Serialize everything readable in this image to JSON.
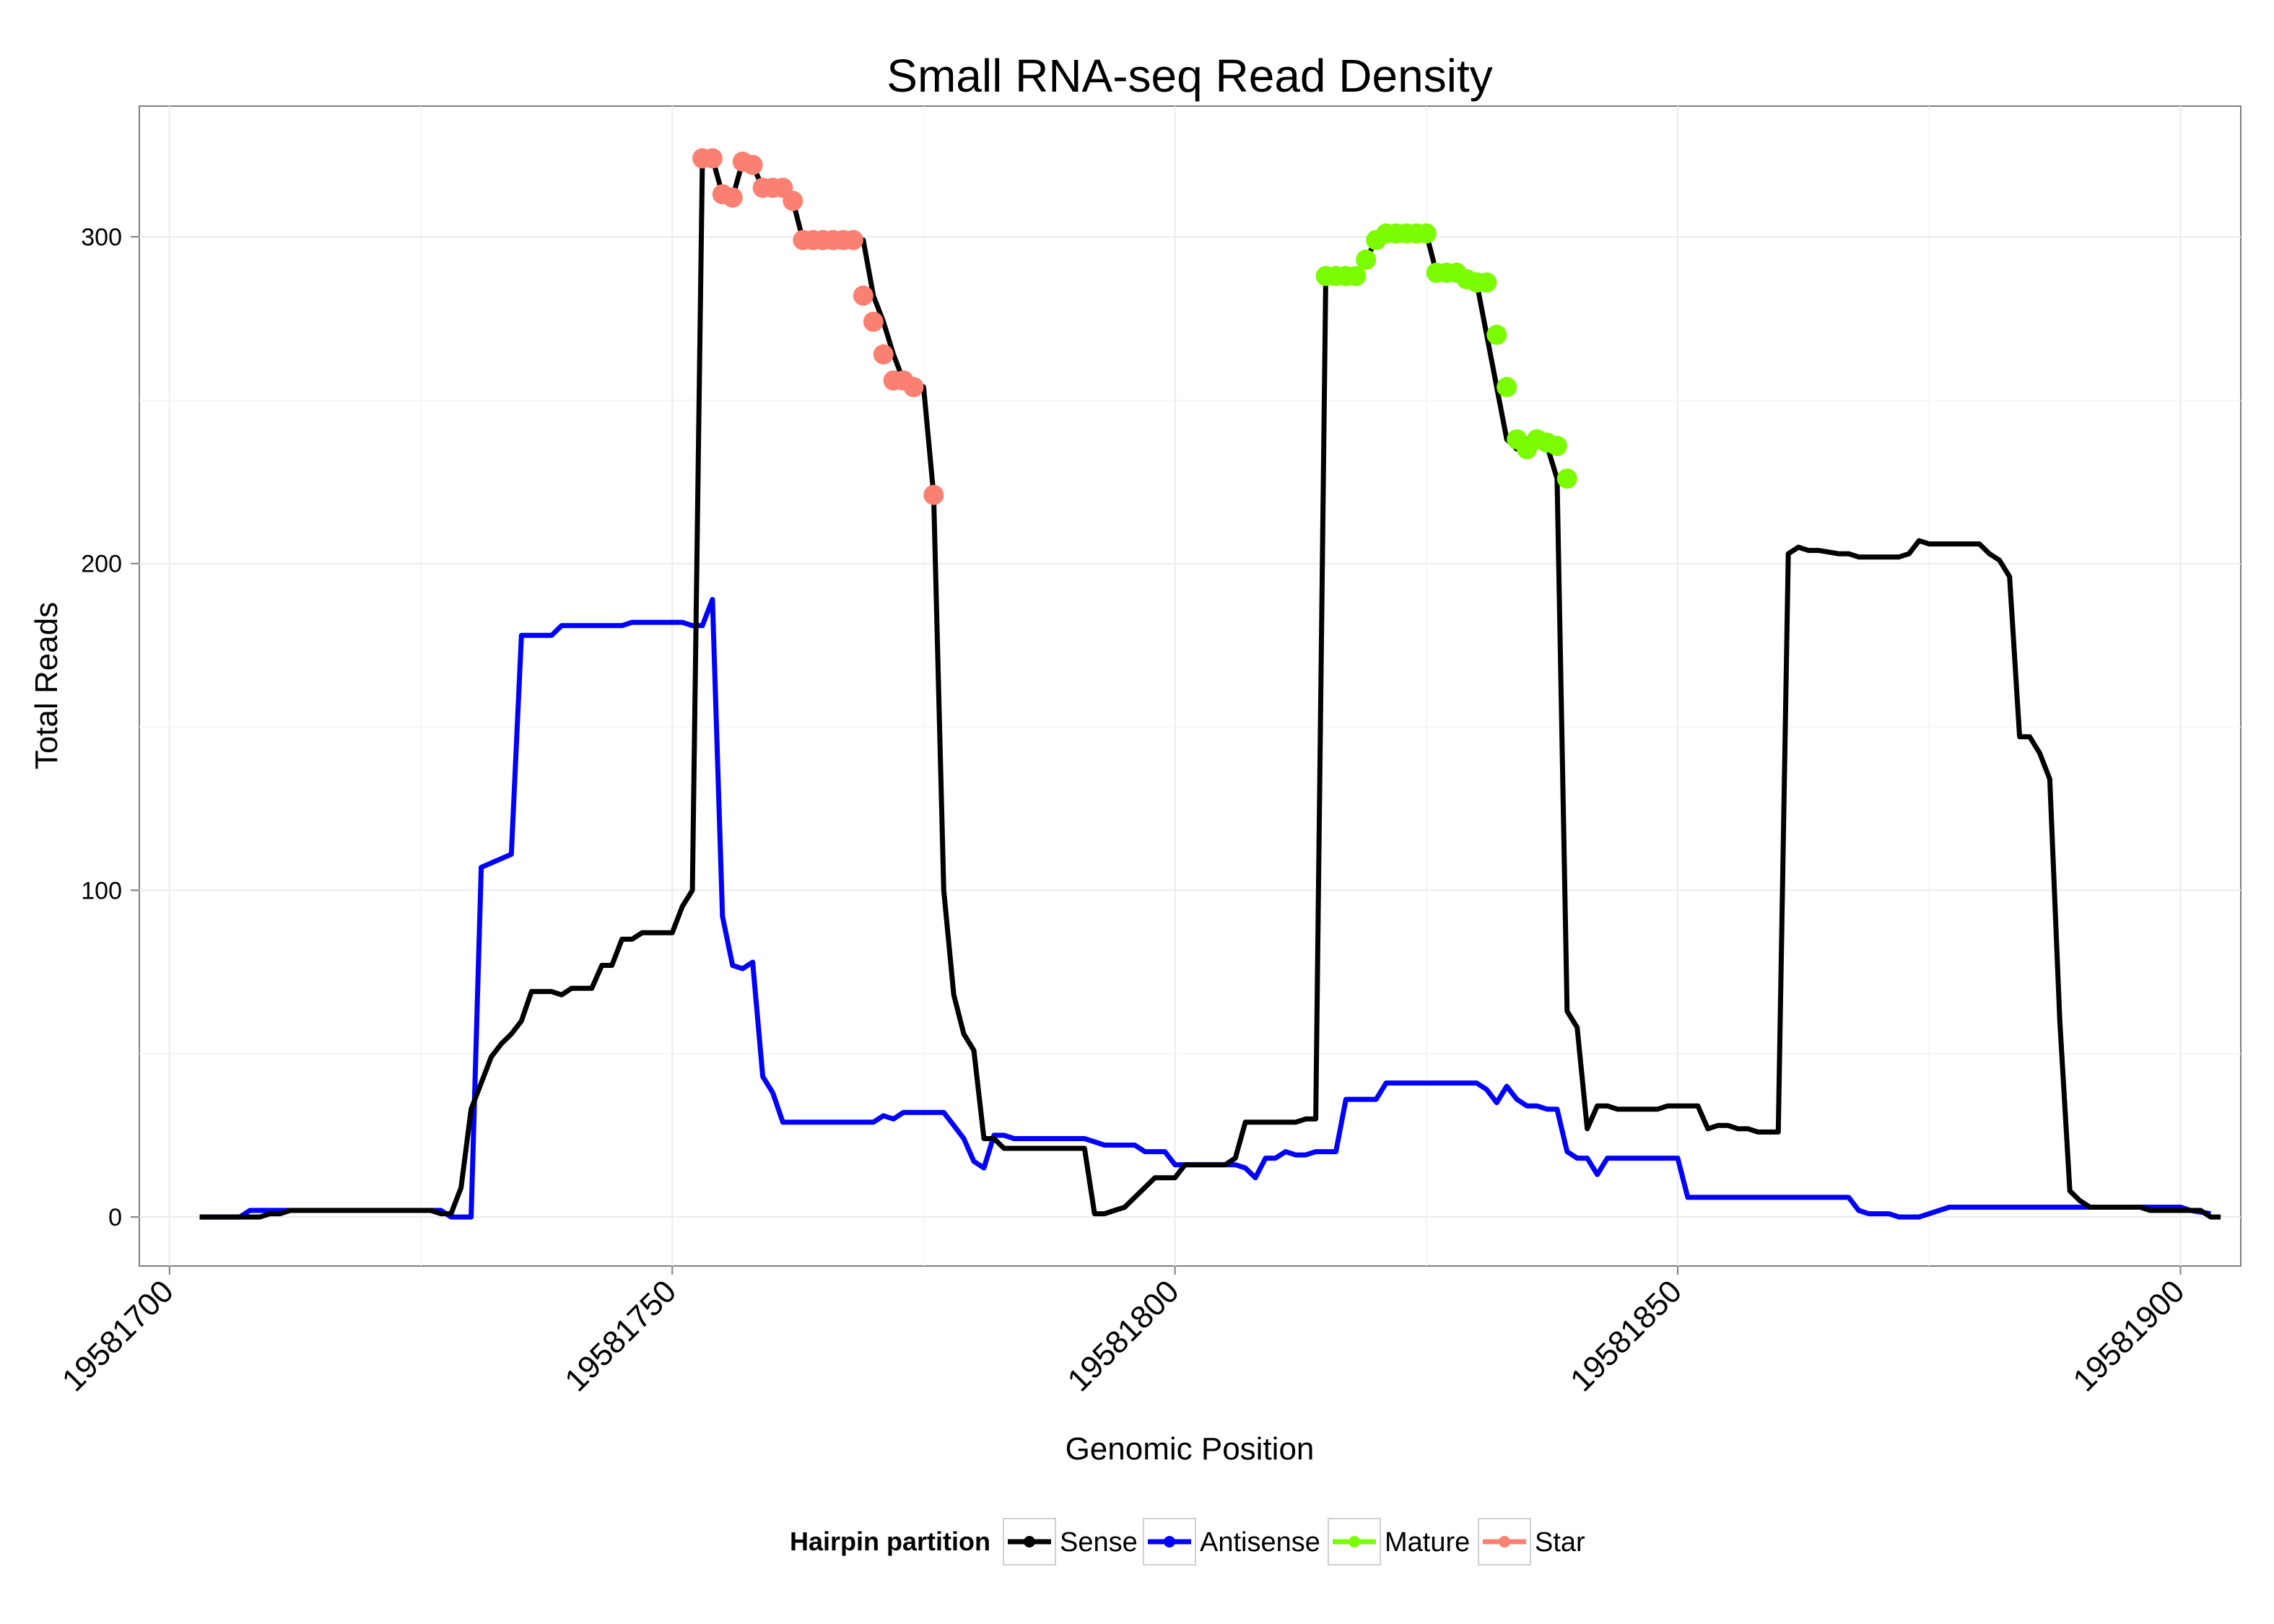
{
  "chart_data": {
    "type": "line",
    "title": "Small RNA-seq Read Density",
    "xlabel": "Genomic Position",
    "ylabel": "Total Reads",
    "xlim": [
      19581697,
      19581906
    ],
    "ylim": [
      -15,
      340
    ],
    "x_ticks": [
      19581700,
      19581750,
      19581800,
      19581850,
      19581900
    ],
    "x_tick_labels": [
      "19581700",
      "19581750",
      "19581800",
      "19581850",
      "19581900"
    ],
    "y_ticks": [
      0,
      100,
      200,
      300
    ],
    "y_tick_labels": [
      "0",
      "100",
      "200",
      "300"
    ],
    "grid": true,
    "legend": {
      "title": "Hairpin partition",
      "position": "bottom",
      "entries": [
        {
          "name": "Sense",
          "color": "#000000"
        },
        {
          "name": "Antisense",
          "color": "#0000ff"
        },
        {
          "name": "Mature",
          "color": "#7cfc00"
        },
        {
          "name": "Star",
          "color": "#fa8072"
        }
      ]
    },
    "series": [
      {
        "name": "Sense",
        "color": "#000000",
        "kind": "line",
        "points": [
          [
            19581703,
            0
          ],
          [
            19581709,
            0
          ],
          [
            19581710,
            1
          ],
          [
            19581711,
            1
          ],
          [
            19581712,
            2
          ],
          [
            19581726,
            2
          ],
          [
            19581727,
            1
          ],
          [
            19581728,
            1
          ],
          [
            19581729,
            9
          ],
          [
            19581730,
            33
          ],
          [
            19581731,
            41
          ],
          [
            19581732,
            49
          ],
          [
            19581733,
            53
          ],
          [
            19581734,
            56
          ],
          [
            19581735,
            60
          ],
          [
            19581736,
            69
          ],
          [
            19581738,
            69
          ],
          [
            19581739,
            68
          ],
          [
            19581740,
            70
          ],
          [
            19581742,
            70
          ],
          [
            19581743,
            77
          ],
          [
            19581744,
            77
          ],
          [
            19581745,
            85
          ],
          [
            19581746,
            85
          ],
          [
            19581747,
            87
          ],
          [
            19581750,
            87
          ],
          [
            19581751,
            95
          ],
          [
            19581752,
            100
          ],
          [
            19581753,
            324
          ],
          [
            19581754,
            324
          ],
          [
            19581755,
            313
          ],
          [
            19581756,
            312
          ],
          [
            19581757,
            323
          ],
          [
            19581758,
            322
          ],
          [
            19581759,
            315
          ],
          [
            19581760,
            315
          ],
          [
            19581761,
            315
          ],
          [
            19581762,
            311
          ],
          [
            19581763,
            299
          ],
          [
            19581769,
            299
          ],
          [
            19581770,
            282
          ],
          [
            19581771,
            274
          ],
          [
            19581772,
            264
          ],
          [
            19581773,
            256
          ],
          [
            19581774,
            256
          ],
          [
            19581775,
            254
          ],
          [
            19581776,
            221
          ],
          [
            19581777,
            100
          ],
          [
            19581778,
            68
          ],
          [
            19581779,
            56
          ],
          [
            19581780,
            51
          ],
          [
            19581781,
            24
          ],
          [
            19581782,
            24
          ],
          [
            19581783,
            21
          ],
          [
            19581791,
            21
          ],
          [
            19581792,
            1
          ],
          [
            19581793,
            1
          ],
          [
            19581794,
            2
          ],
          [
            19581795,
            3
          ],
          [
            19581796,
            6
          ],
          [
            19581797,
            9
          ],
          [
            19581798,
            12
          ],
          [
            19581800,
            12
          ],
          [
            19581801,
            16
          ],
          [
            19581805,
            16
          ],
          [
            19581806,
            18
          ],
          [
            19581807,
            29
          ],
          [
            19581812,
            29
          ],
          [
            19581813,
            30
          ],
          [
            19581814,
            30
          ],
          [
            19581815,
            288
          ],
          [
            19581818,
            288
          ],
          [
            19581819,
            293
          ],
          [
            19581820,
            299
          ],
          [
            19581821,
            301
          ],
          [
            19581825,
            301
          ],
          [
            19581826,
            289
          ],
          [
            19581827,
            289
          ],
          [
            19581828,
            287
          ],
          [
            19581829,
            286
          ],
          [
            19581830,
            286
          ],
          [
            19581831,
            270
          ],
          [
            19581832,
            254
          ],
          [
            19581833,
            238
          ],
          [
            19581834,
            235
          ],
          [
            19581835,
            238
          ],
          [
            19581836,
            237
          ],
          [
            19581837,
            236
          ],
          [
            19581838,
            226
          ],
          [
            19581839,
            63
          ],
          [
            19581840,
            58
          ],
          [
            19581841,
            27
          ],
          [
            19581842,
            34
          ],
          [
            19581843,
            34
          ],
          [
            19581844,
            33
          ],
          [
            19581848,
            33
          ],
          [
            19581849,
            34
          ],
          [
            19581852,
            34
          ],
          [
            19581853,
            27
          ],
          [
            19581854,
            28
          ],
          [
            19581855,
            28
          ],
          [
            19581856,
            27
          ],
          [
            19581857,
            27
          ],
          [
            19581858,
            26
          ],
          [
            19581860,
            26
          ],
          [
            19581861,
            203
          ],
          [
            19581862,
            205
          ],
          [
            19581863,
            204
          ],
          [
            19581864,
            204
          ],
          [
            19581866,
            203
          ],
          [
            19581867,
            203
          ],
          [
            19581868,
            202
          ],
          [
            19581872,
            202
          ],
          [
            19581873,
            203
          ],
          [
            19581874,
            207
          ],
          [
            19581875,
            206
          ],
          [
            19581880,
            206
          ],
          [
            19581881,
            203
          ],
          [
            19581882,
            201
          ],
          [
            19581883,
            196
          ],
          [
            19581884,
            147
          ],
          [
            19581885,
            147
          ],
          [
            19581886,
            142
          ],
          [
            19581887,
            134
          ],
          [
            19581888,
            60
          ],
          [
            19581889,
            8
          ],
          [
            19581890,
            5
          ],
          [
            19581891,
            3
          ],
          [
            19581896,
            3
          ],
          [
            19581897,
            2
          ],
          [
            19581902,
            2
          ],
          [
            19581903,
            0
          ],
          [
            19581904,
            0
          ]
        ]
      },
      {
        "name": "Antisense",
        "color": "#0000ff",
        "kind": "line",
        "points": [
          [
            19581703,
            0
          ],
          [
            19581707,
            0
          ],
          [
            19581708,
            2
          ],
          [
            19581710,
            2
          ],
          [
            19581711,
            2
          ],
          [
            19581725,
            2
          ],
          [
            19581726,
            2
          ],
          [
            19581727,
            2
          ],
          [
            19581728,
            0
          ],
          [
            19581729,
            0
          ],
          [
            19581730,
            0
          ],
          [
            19581731,
            107
          ],
          [
            19581734,
            111
          ],
          [
            19581735,
            178
          ],
          [
            19581738,
            178
          ],
          [
            19581739,
            181
          ],
          [
            19581745,
            181
          ],
          [
            19581746,
            182
          ],
          [
            19581751,
            182
          ],
          [
            19581752,
            181
          ],
          [
            19581753,
            181
          ],
          [
            19581754,
            189
          ],
          [
            19581755,
            92
          ],
          [
            19581756,
            77
          ],
          [
            19581757,
            76
          ],
          [
            19581758,
            78
          ],
          [
            19581759,
            43
          ],
          [
            19581760,
            38
          ],
          [
            19581761,
            29
          ],
          [
            19581770,
            29
          ],
          [
            19581771,
            31
          ],
          [
            19581772,
            30
          ],
          [
            19581773,
            32
          ],
          [
            19581777,
            32
          ],
          [
            19581778,
            28
          ],
          [
            19581779,
            24
          ],
          [
            19581780,
            17
          ],
          [
            19581781,
            15
          ],
          [
            19581782,
            25
          ],
          [
            19581783,
            25
          ],
          [
            19581784,
            24
          ],
          [
            19581791,
            24
          ],
          [
            19581793,
            22
          ],
          [
            19581796,
            22
          ],
          [
            19581797,
            20
          ],
          [
            19581799,
            20
          ],
          [
            19581800,
            16
          ],
          [
            19581806,
            16
          ],
          [
            19581807,
            15
          ],
          [
            19581808,
            12
          ],
          [
            19581809,
            18
          ],
          [
            19581810,
            18
          ],
          [
            19581811,
            20
          ],
          [
            19581812,
            19
          ],
          [
            19581813,
            19
          ],
          [
            19581814,
            20
          ],
          [
            19581816,
            20
          ],
          [
            19581817,
            36
          ],
          [
            19581820,
            36
          ],
          [
            19581821,
            41
          ],
          [
            19581830,
            41
          ],
          [
            19581831,
            39
          ],
          [
            19581832,
            35
          ],
          [
            19581833,
            40
          ],
          [
            19581834,
            36
          ],
          [
            19581835,
            34
          ],
          [
            19581836,
            34
          ],
          [
            19581837,
            33
          ],
          [
            19581838,
            33
          ],
          [
            19581839,
            20
          ],
          [
            19581840,
            18
          ],
          [
            19581841,
            18
          ],
          [
            19581842,
            13
          ],
          [
            19581843,
            18
          ],
          [
            19581850,
            18
          ],
          [
            19581851,
            6
          ],
          [
            19581867,
            6
          ],
          [
            19581868,
            2
          ],
          [
            19581869,
            1
          ],
          [
            19581871,
            1
          ],
          [
            19581872,
            0
          ],
          [
            19581874,
            0
          ],
          [
            19581877,
            3
          ],
          [
            19581900,
            3
          ],
          [
            19581901,
            2
          ],
          [
            19581903,
            1
          ]
        ]
      },
      {
        "name": "Mature",
        "color": "#7cfc00",
        "kind": "points",
        "points": [
          [
            19581815,
            288
          ],
          [
            19581816,
            288
          ],
          [
            19581817,
            288
          ],
          [
            19581818,
            288
          ],
          [
            19581819,
            293
          ],
          [
            19581820,
            299
          ],
          [
            19581821,
            301
          ],
          [
            19581822,
            301
          ],
          [
            19581823,
            301
          ],
          [
            19581824,
            301
          ],
          [
            19581825,
            301
          ],
          [
            19581826,
            289
          ],
          [
            19581827,
            289
          ],
          [
            19581828,
            289
          ],
          [
            19581829,
            287
          ],
          [
            19581830,
            286
          ],
          [
            19581831,
            286
          ],
          [
            19581832,
            270
          ],
          [
            19581833,
            254
          ],
          [
            19581834,
            238
          ],
          [
            19581835,
            235
          ],
          [
            19581836,
            238
          ],
          [
            19581837,
            237
          ],
          [
            19581838,
            236
          ],
          [
            19581839,
            226
          ]
        ]
      },
      {
        "name": "Star",
        "color": "#fa8072",
        "kind": "points",
        "points": [
          [
            19581753,
            324
          ],
          [
            19581754,
            324
          ],
          [
            19581755,
            313
          ],
          [
            19581756,
            312
          ],
          [
            19581757,
            323
          ],
          [
            19581758,
            322
          ],
          [
            19581759,
            315
          ],
          [
            19581760,
            315
          ],
          [
            19581761,
            315
          ],
          [
            19581762,
            311
          ],
          [
            19581763,
            299
          ],
          [
            19581764,
            299
          ],
          [
            19581765,
            299
          ],
          [
            19581766,
            299
          ],
          [
            19581767,
            299
          ],
          [
            19581768,
            299
          ],
          [
            19581769,
            282
          ],
          [
            19581770,
            274
          ],
          [
            19581771,
            264
          ],
          [
            19581772,
            256
          ],
          [
            19581773,
            256
          ],
          [
            19581774,
            254
          ],
          [
            19581776,
            221
          ]
        ]
      }
    ]
  }
}
